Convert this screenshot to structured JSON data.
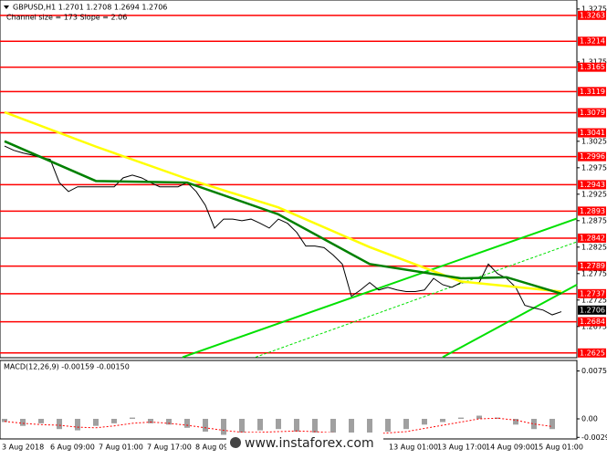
{
  "chart_data": {
    "type": "line",
    "title": "GBPUSD,H1  1.2701 1.2708 1.2694 1.2706",
    "subtitle": "Channel size = 173 Slope = 2.06",
    "watermark": "www.instaforex.com",
    "x_labels": [
      "3 Aug 2018",
      "6 Aug 09:00",
      "7 Aug 01:00",
      "7 Aug 17:00",
      "8 Aug 09:00",
      null,
      null,
      null,
      "13 Aug 01:00",
      "13 Aug 17:00",
      "14 Aug 09:00",
      "15 Aug 01:00"
    ],
    "ylim": [
      1.2616,
      1.3292
    ],
    "yticks": [
      1.3275,
      1.3175,
      1.3025,
      1.2975,
      1.2925,
      1.2875,
      1.2825,
      1.2775,
      1.2725,
      1.2675
    ],
    "levels": {
      "color": "#ff0000",
      "values": [
        1.3263,
        1.3214,
        1.3165,
        1.3119,
        1.3079,
        1.3041,
        1.2996,
        1.2943,
        1.2893,
        1.2842,
        1.2789,
        1.2737,
        1.2684,
        1.2625
      ]
    },
    "last_price": 1.2706,
    "series": [
      {
        "color": "#000000",
        "values": [
          1.3016,
          1.3008,
          1.3003,
          1.2999,
          1.2994,
          1.2991,
          1.2947,
          1.293,
          1.2939,
          1.2939,
          1.2939,
          1.2939,
          1.2939,
          1.2956,
          1.2961,
          1.2956,
          1.2947,
          1.2939,
          1.2939,
          1.2939,
          1.2947,
          1.293,
          1.2904,
          1.2861,
          1.2878,
          1.2878,
          1.2875,
          1.2878,
          1.287,
          1.2861,
          1.2878,
          1.287,
          1.2853,
          1.2827,
          1.2827,
          1.2824,
          1.281,
          1.2793,
          1.2732,
          1.2744,
          1.2758,
          1.2744,
          1.2749,
          1.2744,
          1.2741,
          1.2741,
          1.2744,
          1.2766,
          1.2754,
          1.2749,
          1.2758,
          1.2758,
          1.2758,
          1.2793,
          1.2775,
          1.2766,
          1.2749,
          1.2715,
          1.271,
          1.2706,
          1.2697,
          1.2703
        ]
      },
      {
        "color": "#ffff00",
        "x": [
          0,
          10,
          20,
          30,
          40,
          50,
          61
        ],
        "values": [
          1.308,
          1.3015,
          1.2954,
          1.29,
          1.2825,
          1.276,
          1.2741
        ]
      },
      {
        "color": "#008000",
        "x": [
          0,
          10,
          20,
          30,
          40,
          50,
          55,
          61
        ],
        "values": [
          1.3025,
          1.295,
          1.2947,
          1.2887,
          1.2793,
          1.2766,
          1.2768,
          1.2737
        ]
      }
    ],
    "channel": {
      "color": "#00e000",
      "lines": [
        {
          "x": [
            19.5,
            62.7
          ],
          "values": [
            1.2617,
            1.2879
          ]
        },
        {
          "x": [
            27.5,
            62.7
          ],
          "values": [
            1.2617,
            1.2835
          ],
          "dashed": true
        },
        {
          "x": [
            48,
            62.7
          ],
          "values": [
            1.2617,
            1.2754
          ]
        }
      ]
    },
    "macd": {
      "title": "MACD(12,26,9) -0.00159 -0.00150",
      "ylim": [
        -0.003,
        0.009
      ],
      "yticks": [
        0.0075,
        {
          "value": 0,
          "label": "0.00"
        },
        -0.0029
      ],
      "histogram": [
        -0.0005,
        -0.0011,
        -0.0007,
        -0.0016,
        -0.0018,
        -0.0011,
        -0.0007,
        0.0002,
        -0.0007,
        -0.0009,
        -0.0014,
        -0.002,
        -0.0025,
        -0.0025,
        -0.0018,
        -0.0016,
        -0.002,
        -0.0023,
        -0.0025,
        -0.0025,
        -0.0023,
        -0.002,
        -0.0016,
        -0.0009,
        -0.0005,
        0.0002,
        0.0005,
        0.0002,
        -0.0009,
        -0.0016,
        -0.0016
      ],
      "signal": [
        -0.0004,
        -0.0007,
        -0.0009,
        -0.001,
        -0.0013,
        -0.0014,
        -0.0011,
        -0.0007,
        -0.0005,
        -0.0007,
        -0.001,
        -0.0014,
        -0.0018,
        -0.0021,
        -0.0021,
        -0.002,
        -0.0019,
        -0.002,
        -0.0022,
        -0.0023,
        -0.0024,
        -0.0022,
        -0.002,
        -0.0015,
        -0.001,
        -0.0005,
        0,
        0.0001,
        -0.0002,
        -0.0008,
        -0.0012
      ],
      "histogram_color": "#a0a0a0",
      "signal_color": "#ff0000"
    }
  }
}
